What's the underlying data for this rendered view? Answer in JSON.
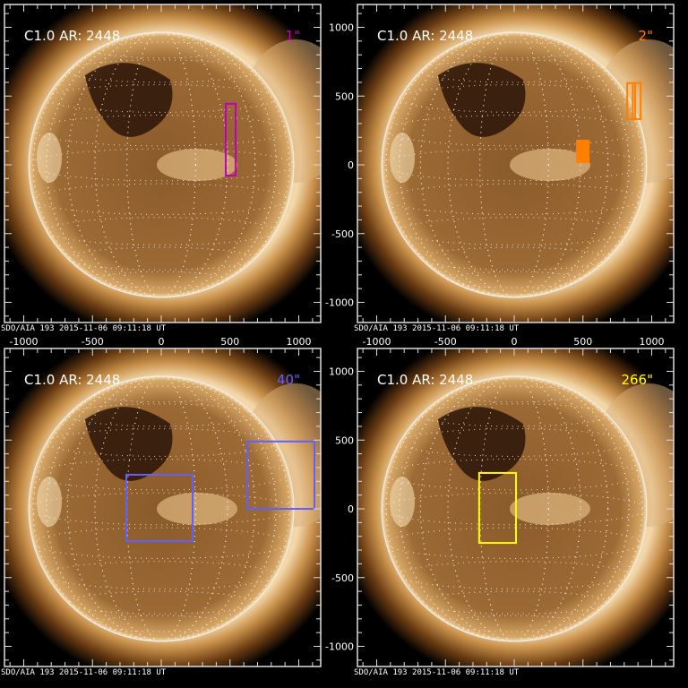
{
  "chart_data": [
    {
      "type": "image",
      "title": "C1.0 AR: 2448",
      "label": "1\"",
      "label_color": "#c000c0",
      "footer": "SDO/AIA 193  2015-11-06 09:11:18 UT",
      "xlim": [
        -1130,
        1150
      ],
      "ylim": [
        -1150,
        1150
      ],
      "x_ticks": [
        -1000,
        -500,
        0,
        500,
        1000
      ],
      "y_ticks": [],
      "boxes": [
        {
          "x": [
            469,
            541
          ],
          "y": [
            -78,
            444
          ],
          "color": "#c000c0",
          "fill": false
        }
      ]
    },
    {
      "type": "image",
      "title": "C1.0 AR: 2448",
      "label": "2\"",
      "label_color": "#ff7f00",
      "footer": "SDO/AIA 193  2015-11-06 09:11:18 UT",
      "xlim": [
        -1130,
        1150
      ],
      "ylim": [
        -1150,
        1150
      ],
      "x_ticks": [
        -1000,
        -500,
        0,
        500,
        1000
      ],
      "y_ticks": [
        -1000,
        -500,
        0,
        500,
        1000
      ],
      "boxes": [
        {
          "x": [
            822,
            880
          ],
          "y": [
            333,
            595
          ],
          "color": "#ff7f00",
          "fill": false
        },
        {
          "x": [
            862,
            920
          ],
          "y": [
            333,
            595
          ],
          "color": "#ff7f00",
          "fill": false
        },
        {
          "x": [
            457,
            542
          ],
          "y": [
            20,
            176
          ],
          "color": "#ff7f00",
          "fill": true
        }
      ]
    },
    {
      "type": "image",
      "title": "C1.0 AR: 2448",
      "label": "40\"",
      "label_color": "#6060ff",
      "footer": "SDO/AIA 193  2015-11-06 09:11:18 UT",
      "xlim": [
        -1130,
        1150
      ],
      "ylim": [
        -1150,
        1150
      ],
      "x_ticks": [],
      "y_ticks": [],
      "boxes": [
        {
          "x": [
            -254,
            228
          ],
          "y": [
            -235,
            248
          ],
          "color": "#6060ff",
          "fill": false
        },
        {
          "x": [
            625,
            1114
          ],
          "y": [
            0,
            490
          ],
          "color": "#6060ff",
          "fill": false
        }
      ]
    },
    {
      "type": "image",
      "title": "C1.0 AR: 2448",
      "label": "266\"",
      "label_color": "#ffff00",
      "footer": "SDO/AIA 193  2015-11-06 09:11:18 UT",
      "xlim": [
        -1130,
        1150
      ],
      "ylim": [
        -1150,
        1150
      ],
      "x_ticks": [],
      "y_ticks": [
        -1000,
        -500,
        0,
        500,
        1000
      ],
      "boxes": [
        {
          "x": [
            -255,
            13
          ],
          "y": [
            -248,
            261
          ],
          "color": "#ffff00",
          "fill": false
        }
      ]
    }
  ]
}
